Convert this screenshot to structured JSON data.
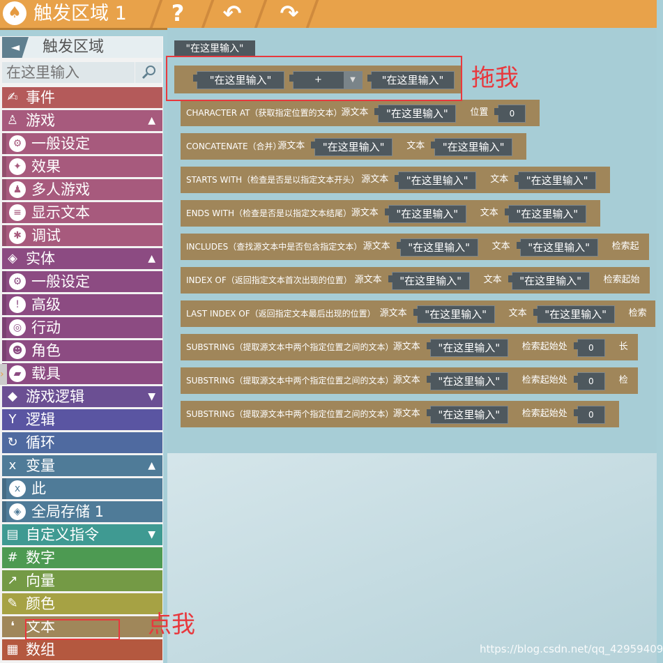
{
  "topbar": {
    "logo_icon": "trigger-area-logo",
    "title": "触发区域 1",
    "help_icon": "?",
    "undo_icon": "↶",
    "redo_icon": "↷"
  },
  "sidebar": {
    "back_icon": "◄",
    "title": "触发区域",
    "search_placeholder": "在这里输入",
    "search_icon": "magnifier",
    "categories": [
      {
        "label": "事件",
        "icon": "event",
        "color": "#b45a5a",
        "type": "main"
      },
      {
        "label": "游戏",
        "icon": "joystick",
        "color": "#a75a7d",
        "type": "main",
        "arrow": "▲"
      },
      {
        "label": "一般设定",
        "icon": "gear",
        "color": "#a75a7d",
        "type": "sub"
      },
      {
        "label": "效果",
        "icon": "effects",
        "color": "#a75a7d",
        "type": "sub"
      },
      {
        "label": "多人游戏",
        "icon": "players",
        "color": "#a75a7d",
        "type": "sub"
      },
      {
        "label": "显示文本",
        "icon": "text-lines",
        "color": "#a75a7d",
        "type": "sub"
      },
      {
        "label": "调试",
        "icon": "bug",
        "color": "#a75a7d",
        "type": "sub"
      },
      {
        "label": "实体",
        "icon": "cube",
        "color": "#8c4b82",
        "type": "main",
        "arrow": "▲"
      },
      {
        "label": "一般设定",
        "icon": "gear",
        "color": "#8c4b82",
        "type": "sub"
      },
      {
        "label": "高级",
        "icon": "advanced",
        "color": "#8c4b82",
        "type": "sub"
      },
      {
        "label": "行动",
        "icon": "action",
        "color": "#8c4b82",
        "type": "sub"
      },
      {
        "label": "角色",
        "icon": "character",
        "color": "#8c4b82",
        "type": "sub"
      },
      {
        "label": "载具",
        "icon": "vehicle",
        "color": "#8c4b82",
        "type": "sub"
      },
      {
        "label": "游戏逻辑",
        "icon": "logic-pin",
        "color": "#6b4f93",
        "type": "main",
        "arrow": "▼"
      },
      {
        "label": "逻辑",
        "icon": "branch",
        "color": "#5a55a2",
        "type": "main"
      },
      {
        "label": "循环",
        "icon": "loop",
        "color": "#4f6aa0",
        "type": "main"
      },
      {
        "label": "变量",
        "icon": "variable",
        "color": "#4f7b98",
        "type": "main",
        "arrow": "▲"
      },
      {
        "label": "此",
        "icon": "this",
        "color": "#4f7b98",
        "type": "sub"
      },
      {
        "label": "全局存储 1",
        "icon": "global-storage",
        "color": "#4f7b98",
        "type": "sub"
      },
      {
        "label": "自定义指令",
        "icon": "custom-command",
        "color": "#3f9a92",
        "type": "main",
        "arrow": "▼"
      },
      {
        "label": "数字",
        "icon": "number",
        "color": "#4d9a52",
        "type": "main"
      },
      {
        "label": "向量",
        "icon": "vector",
        "color": "#749a45",
        "type": "main"
      },
      {
        "label": "颜色",
        "icon": "brush",
        "color": "#a6a244",
        "type": "main"
      },
      {
        "label": "文本",
        "icon": "quote",
        "color": "#a0875a",
        "type": "main"
      },
      {
        "label": "数组",
        "icon": "array",
        "color": "#b4583f",
        "type": "main"
      }
    ]
  },
  "workspace": {
    "lone_chip": "\"在这里输入\"",
    "concat_block": {
      "left": "\"在这里输入\"",
      "op": "+",
      "right": "\"在这里输入\""
    },
    "blocks": [
      {
        "name": "CHARACTER AT（获取指定位置的文本）",
        "params": [
          {
            "label": "源文本",
            "value": "\"在这里输入\""
          },
          {
            "label": "位置",
            "value": "0"
          }
        ]
      },
      {
        "name": "CONCATENATE（合并）",
        "params": [
          {
            "label": "源文本",
            "value": "\"在这里输入\""
          },
          {
            "label": "文本",
            "value": "\"在这里输入\""
          }
        ]
      },
      {
        "name": "STARTS WITH（检查是否是以指定文本开头）",
        "params": [
          {
            "label": "源文本",
            "value": "\"在这里输入\""
          },
          {
            "label": "文本",
            "value": "\"在这里输入\""
          }
        ]
      },
      {
        "name": "ENDS WITH（检查是否是以指定文本结尾）",
        "params": [
          {
            "label": "源文本",
            "value": "\"在这里输入\""
          },
          {
            "label": "文本",
            "value": "\"在这里输入\""
          }
        ]
      },
      {
        "name": "INCLUDES（查找源文本中是否包含指定文本）",
        "params": [
          {
            "label": "源文本",
            "value": "\"在这里输入\""
          },
          {
            "label": "文本",
            "value": "\"在这里输入\""
          },
          {
            "label": "检索起"
          }
        ]
      },
      {
        "name": "INDEX OF（返回指定文本首次出现的位置）",
        "params": [
          {
            "label": "源文本",
            "value": "\"在这里输入\""
          },
          {
            "label": "文本",
            "value": "\"在这里输入\""
          },
          {
            "label": "检索起始"
          }
        ]
      },
      {
        "name": "LAST INDEX OF（返回指定文本最后出现的位置）",
        "params": [
          {
            "label": "源文本",
            "value": "\"在这里输入\""
          },
          {
            "label": "文本",
            "value": "\"在这里输入\""
          },
          {
            "label": "检索"
          }
        ]
      },
      {
        "name": "SUBSTRING（提取源文本中两个指定位置之间的文本）",
        "params": [
          {
            "label": "源文本",
            "value": "\"在这里输入\""
          },
          {
            "label": "检索起始处",
            "value": "0"
          },
          {
            "label": "长"
          }
        ]
      },
      {
        "name": "SUBSTRING（提取源文本中两个指定位置之间的文本）",
        "params": [
          {
            "label": "源文本",
            "value": "\"在这里输入\""
          },
          {
            "label": "检索起始处",
            "value": "0"
          },
          {
            "label": "检"
          }
        ]
      },
      {
        "name": "SUBSTRING（提取源文本中两个指定位置之间的文本）",
        "params": [
          {
            "label": "源文本",
            "value": "\"在这里输入\""
          },
          {
            "label": "检索起始处",
            "value": "0"
          }
        ]
      }
    ]
  },
  "annotations": {
    "drag_me": "拖我",
    "click_me": "点我"
  },
  "watermark": "https://blog.csdn.net/qq_42959409"
}
